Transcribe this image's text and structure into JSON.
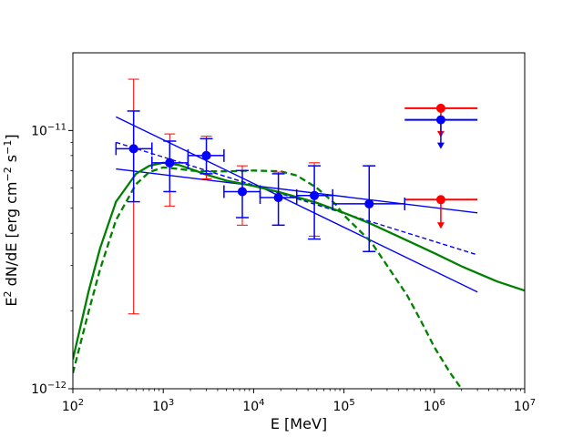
{
  "chart_data": {
    "type": "scatter",
    "title": "",
    "xscale": "log",
    "yscale": "log",
    "xlim": [
      100,
      10000000
    ],
    "ylim": [
      1e-12,
      2e-11
    ],
    "x_ticks": [
      {
        "value": 100,
        "base": "10",
        "exp": "2"
      },
      {
        "value": 1000,
        "base": "10",
        "exp": "3"
      },
      {
        "value": 10000,
        "base": "10",
        "exp": "4"
      },
      {
        "value": 100000,
        "base": "10",
        "exp": "5"
      },
      {
        "value": 1000000,
        "base": "10",
        "exp": "6"
      },
      {
        "value": 10000000,
        "base": "10",
        "exp": "7"
      }
    ],
    "y_ticks": [
      {
        "value": 1e-12,
        "base": "10",
        "exp": "−12"
      },
      {
        "value": 1e-11,
        "base": "10",
        "exp": "−11"
      }
    ],
    "xlabel": "E [MeV]",
    "ylabel": {
      "pre": "E",
      "sup1": "2",
      "mid": " dN/dE [erg cm",
      "sup2": "−2",
      "mid2": " s",
      "sup3": "−1",
      "post": "]"
    },
    "colors": {
      "red": "#ff0000",
      "blue": "#0000ff",
      "green": "#008000"
    },
    "series": [
      {
        "name": "red-data",
        "color": "#ff0000",
        "points": [
          {
            "x": 470,
            "y": 8.5e-12,
            "xlo": 300,
            "xhi": 750,
            "ylo": 1.95e-12,
            "yhi": 1.58e-11
          },
          {
            "x": 1180,
            "y": 7.5e-12,
            "xlo": 750,
            "xhi": 1880,
            "ylo": 5.1e-12,
            "yhi": 9.7e-12
          },
          {
            "x": 3000,
            "y": 8e-12,
            "xlo": 1880,
            "xhi": 4700,
            "ylo": 6.5e-12,
            "yhi": 9.5e-12
          },
          {
            "x": 7500,
            "y": 5.8e-12,
            "xlo": 4700,
            "xhi": 11800,
            "ylo": 4.3e-12,
            "yhi": 7.3e-12
          },
          {
            "x": 18800,
            "y": 5.5e-12,
            "xlo": 11800,
            "xhi": 30000,
            "ylo": 4.3e-12,
            "yhi": 6.9e-12
          },
          {
            "x": 47000,
            "y": 5.6e-12,
            "xlo": 30000,
            "xhi": 75000,
            "ylo": 3.9e-12,
            "yhi": 7.5e-12
          },
          {
            "x": 190000,
            "y": 5.2e-12,
            "xlo": 75000,
            "xhi": 470000,
            "ylo": 3.4e-12,
            "yhi": 7.3e-12
          }
        ],
        "upper_limits": [
          {
            "x": 1180000,
            "y": 1.22e-11,
            "xlo": 470000,
            "xhi": 3000000
          },
          {
            "x": 1180000,
            "y": 5.4e-12,
            "xlo": 470000,
            "xhi": 3000000
          }
        ]
      },
      {
        "name": "blue-data",
        "color": "#0000ff",
        "points": [
          {
            "x": 470,
            "y": 8.5e-12,
            "xlo": 300,
            "xhi": 750,
            "ylo": 5.3e-12,
            "yhi": 1.19e-11
          },
          {
            "x": 1180,
            "y": 7.5e-12,
            "xlo": 750,
            "xhi": 1880,
            "ylo": 5.8e-12,
            "yhi": 9.1e-12
          },
          {
            "x": 3000,
            "y": 8e-12,
            "xlo": 1880,
            "xhi": 4700,
            "ylo": 6.8e-12,
            "yhi": 9.3e-12
          },
          {
            "x": 7500,
            "y": 5.8e-12,
            "xlo": 4700,
            "xhi": 11800,
            "ylo": 4.6e-12,
            "yhi": 7e-12
          },
          {
            "x": 18800,
            "y": 5.5e-12,
            "xlo": 11800,
            "xhi": 30000,
            "ylo": 4.3e-12,
            "yhi": 6.8e-12
          },
          {
            "x": 47000,
            "y": 5.6e-12,
            "xlo": 30000,
            "xhi": 75000,
            "ylo": 3.8e-12,
            "yhi": 7.3e-12
          },
          {
            "x": 190000,
            "y": 5.2e-12,
            "xlo": 75000,
            "xhi": 470000,
            "ylo": 3.4e-12,
            "yhi": 7.3e-12
          }
        ],
        "upper_limits": [
          {
            "x": 1180000,
            "y": 1.1e-11,
            "xlo": 470000,
            "xhi": 3000000
          }
        ]
      }
    ],
    "lines": [
      {
        "name": "blue-powerlaw-upper-bound",
        "color": "#0000ff",
        "style": "solid",
        "x": [
          300,
          3000000
        ],
        "y": [
          1.13e-11,
          2.37e-12
        ]
      },
      {
        "name": "blue-powerlaw-lower-bound",
        "color": "#0000ff",
        "style": "solid",
        "x": [
          300,
          3000000
        ],
        "y": [
          7.1e-12,
          4.8e-12
        ]
      },
      {
        "name": "blue-powerlaw-best-fit",
        "color": "#0000ff",
        "style": "dashed",
        "x": [
          300,
          3000000
        ],
        "y": [
          9e-12,
          3.3e-12
        ]
      },
      {
        "name": "green-model-solid",
        "color": "#008000",
        "style": "solid",
        "x": [
          100,
          150,
          200,
          300,
          500,
          700,
          1000,
          1500,
          2000,
          3000,
          5000,
          10000,
          20000,
          50000,
          100000,
          200000,
          500000,
          1000000,
          2000000,
          5000000,
          10000000
        ],
        "y": [
          1.3e-12,
          2.4e-12,
          3.5e-12,
          5.3e-12,
          6.8e-12,
          7.3e-12,
          7.5e-12,
          7.35e-12,
          7.1e-12,
          6.75e-12,
          6.4e-12,
          6.1e-12,
          5.75e-12,
          5.25e-12,
          4.8e-12,
          4.35e-12,
          3.75e-12,
          3.35e-12,
          2.98e-12,
          2.6e-12,
          2.4e-12
        ]
      },
      {
        "name": "green-model-dashed",
        "color": "#008000",
        "style": "dashed",
        "x": [
          100,
          150,
          200,
          300,
          500,
          700,
          1000,
          1500,
          2000,
          3000,
          5000,
          10000,
          20000,
          30000,
          50000,
          80000,
          100000,
          200000,
          300000,
          500000,
          700000,
          1000000,
          1500000,
          2000000
        ],
        "y": [
          1.15e-12,
          2e-12,
          2.9e-12,
          4.5e-12,
          6.2e-12,
          6.9e-12,
          7.2e-12,
          7.1e-12,
          7e-12,
          6.95e-12,
          6.95e-12,
          7e-12,
          6.95e-12,
          6.7e-12,
          6e-12,
          5.2e-12,
          4.7e-12,
          3.7e-12,
          3e-12,
          2.3e-12,
          1.85e-12,
          1.45e-12,
          1.15e-12,
          1e-12
        ]
      }
    ]
  }
}
